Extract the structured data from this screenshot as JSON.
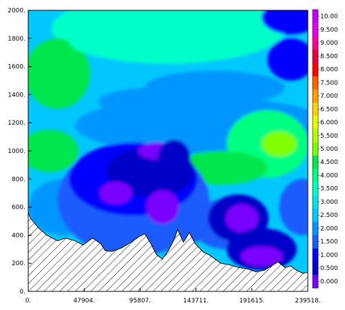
{
  "chart_data": {
    "type": "heatmap",
    "title": "",
    "xlabel": "",
    "ylabel": "",
    "x_ticks": [
      "0.",
      "47904.",
      "95807.",
      "143711.",
      "191615.",
      "239518."
    ],
    "x_tick_values": [
      0,
      47904,
      95807,
      143711,
      191615,
      239518
    ],
    "y_ticks": [
      "0.",
      "200.",
      "400.",
      "600.",
      "800.",
      "1000.",
      "1200.",
      "1400.",
      "1600.",
      "1800.",
      "2000."
    ],
    "y_tick_values": [
      0,
      200,
      400,
      600,
      800,
      1000,
      1200,
      1400,
      1600,
      1800,
      2000
    ],
    "xlim": [
      0,
      239518
    ],
    "ylim": [
      0,
      2000
    ],
    "colorbar": {
      "labels": [
        "0.000",
        "0.500",
        "1.000",
        "1.500",
        "2.000",
        "2.500",
        "3.000",
        "3.500",
        "4.000",
        "4.500",
        "5.000",
        "5.500",
        "6.000",
        "6.500",
        "7.000",
        "7.500",
        "8.000",
        "8.500",
        "9.000",
        "9.500",
        "10.00"
      ],
      "colors": [
        "#7a00ff",
        "#0000c8",
        "#0000ff",
        "#1f5cff",
        "#0096ff",
        "#00c8ff",
        "#00e6e6",
        "#00ffc8",
        "#00ff80",
        "#00e64d",
        "#80ff00",
        "#b4ff00",
        "#e6ff00",
        "#ffd200",
        "#ffa000",
        "#ff6400",
        "#ff0000",
        "#e6003c",
        "#ff00a0",
        "#e600e6",
        "#c800ff"
      ]
    },
    "terrain_fill": "hatched",
    "description": "Vertical cross-section contour field; values mostly 1.5–3.5 with a minimum (0–1) pocket at x≈50k–120k, y≈300–1000 and near x≈150k–210k, y≈150–700; higher values (3.5–4.5) at left y≈800–1000, left y≈1400–1600 and right y≈700–1100."
  }
}
